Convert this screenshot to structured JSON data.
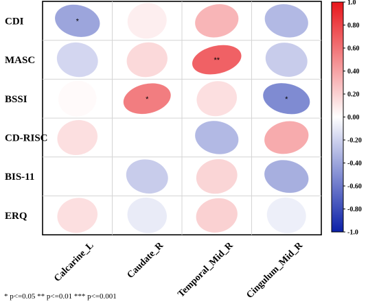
{
  "chart_data": {
    "type": "heatmap",
    "subtype": "correlation-ellipse",
    "rows": [
      "CDI",
      "MASC",
      "BSSI",
      "CD-RISC",
      "BIS-11",
      "ERQ"
    ],
    "columns": [
      "Calcarine_L",
      "Caudate_R",
      "Temporal_Mid_R",
      "Cingulum_Mid_R"
    ],
    "values": [
      [
        -0.45,
        0.08,
        0.35,
        -0.35
      ],
      [
        -0.2,
        0.18,
        0.75,
        -0.25
      ],
      [
        0.02,
        0.62,
        0.15,
        -0.58
      ],
      [
        0.15,
        0.0,
        -0.35,
        0.4
      ],
      [
        0.0,
        -0.25,
        0.2,
        -0.4
      ],
      [
        0.15,
        -0.1,
        0.22,
        -0.08
      ]
    ],
    "significance": [
      [
        "*",
        "",
        "",
        ""
      ],
      [
        "",
        "",
        "**",
        ""
      ],
      [
        "",
        "*",
        "",
        "*"
      ],
      [
        "",
        "",
        "",
        ""
      ],
      [
        "",
        "",
        "",
        ""
      ],
      [
        "",
        "",
        "",
        ""
      ]
    ],
    "colorbar": {
      "range": [
        -1.0,
        1.0
      ],
      "ticks": [
        "1.0",
        "0.80",
        "0.60",
        "0.40",
        "0.20",
        "0.00",
        "-0.20",
        "-0.40",
        "-0.60",
        "-0.80",
        "-1.0"
      ],
      "colors": {
        "negative": "#0b20a8",
        "zero": "#ffffff",
        "positive": "#e8161b"
      }
    },
    "footnote": "* p<=0.05  ** p<=0.01  *** p<=0.001"
  }
}
